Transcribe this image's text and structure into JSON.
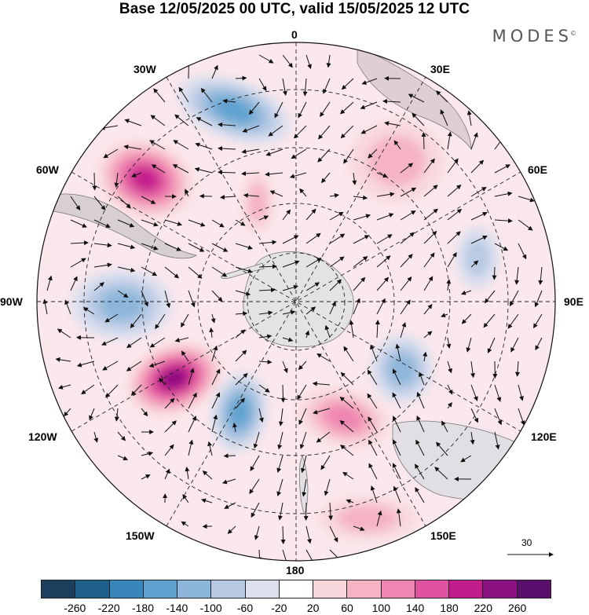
{
  "title": "Base 12/05/2025 00 UTC, valid 15/05/2025 12 UTC",
  "brand": {
    "name": "MODES",
    "mark": "©"
  },
  "longitude_labels": {
    "top": "0",
    "bottom": "180",
    "left": "90W",
    "right": "90E",
    "upper_left_1": "30W",
    "upper_left_2": "60W",
    "upper_right_1": "30E",
    "upper_right_2": "60E",
    "lower_left_1": "120W",
    "lower_left_2": "150W",
    "lower_right_1": "120E",
    "lower_right_2": "150E"
  },
  "reference_vector": {
    "label": "30"
  },
  "colorbar": {
    "colors": [
      "#1d3f5e",
      "#1f5f8c",
      "#3a86bb",
      "#5fa2cf",
      "#8cb6da",
      "#b9cbe4",
      "#dcdfee",
      "#ffffff",
      "#f8d7dc",
      "#f5b3c3",
      "#ef86b1",
      "#e0529f",
      "#c21e8b",
      "#8c1182",
      "#5b0f6d"
    ],
    "ticks": [
      "-260",
      "-220",
      "-180",
      "-140",
      "-100",
      "-60",
      "-20",
      "20",
      "60",
      "100",
      "140",
      "180",
      "220",
      "260"
    ]
  },
  "anomaly_cells": [
    {
      "sign": "neg",
      "level": 4
    },
    {
      "sign": "neg",
      "level": 3
    },
    {
      "sign": "pos",
      "level": 5
    },
    {
      "sign": "pos",
      "level": 6
    },
    {
      "sign": "neg",
      "level": 4
    },
    {
      "sign": "neg",
      "level": 2
    },
    {
      "sign": "pos",
      "level": 3
    },
    {
      "sign": "pos",
      "level": 2
    },
    {
      "sign": "neg",
      "level": 3
    },
    {
      "sign": "pos",
      "level": 2
    },
    {
      "sign": "neg",
      "level": 2
    },
    {
      "sign": "pos",
      "level": 2
    }
  ]
}
